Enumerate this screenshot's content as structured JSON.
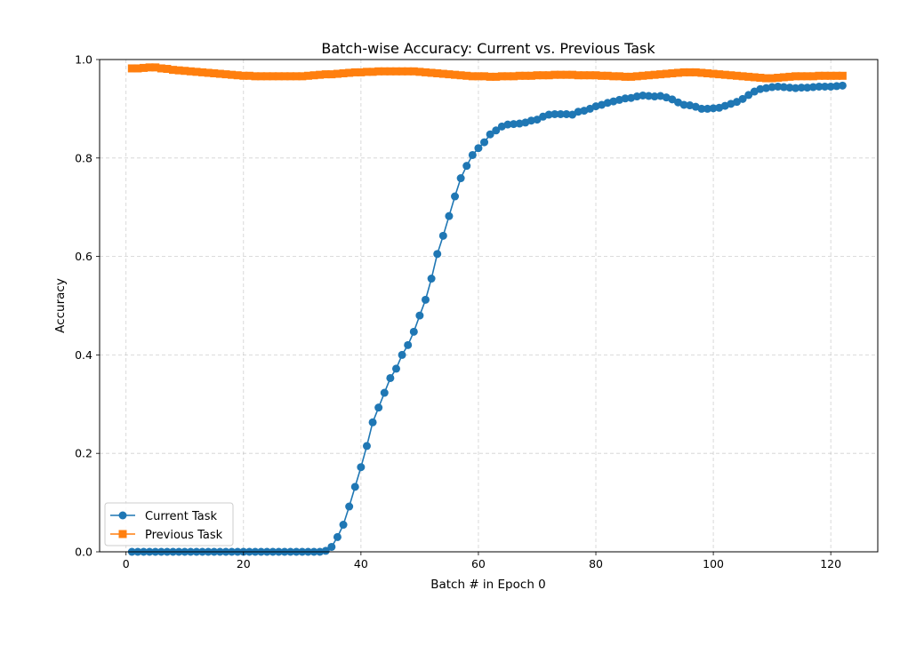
{
  "chart_data": {
    "type": "line",
    "title": "Batch-wise Accuracy: Current vs. Previous Task",
    "xlabel": "Batch # in Epoch 0",
    "ylabel": "Accuracy",
    "xlim": [
      -4.5,
      128
    ],
    "ylim": [
      0,
      1.0
    ],
    "xticks": [
      0,
      20,
      40,
      60,
      80,
      100,
      120
    ],
    "yticks": [
      0.0,
      0.2,
      0.4,
      0.6,
      0.8,
      1.0
    ],
    "xtick_labels": [
      "0",
      "20",
      "40",
      "60",
      "80",
      "100",
      "120"
    ],
    "ytick_labels": [
      "0.0",
      "0.2",
      "0.4",
      "0.6",
      "0.8",
      "1.0"
    ],
    "grid": true,
    "legend_position": "lower-left",
    "x": [
      1,
      2,
      3,
      4,
      5,
      6,
      7,
      8,
      9,
      10,
      11,
      12,
      13,
      14,
      15,
      16,
      17,
      18,
      19,
      20,
      21,
      22,
      23,
      24,
      25,
      26,
      27,
      28,
      29,
      30,
      31,
      32,
      33,
      34,
      35,
      36,
      37,
      38,
      39,
      40,
      41,
      42,
      43,
      44,
      45,
      46,
      47,
      48,
      49,
      50,
      51,
      52,
      53,
      54,
      55,
      56,
      57,
      58,
      59,
      60,
      61,
      62,
      63,
      64,
      65,
      66,
      67,
      68,
      69,
      70,
      71,
      72,
      73,
      74,
      75,
      76,
      77,
      78,
      79,
      80,
      81,
      82,
      83,
      84,
      85,
      86,
      87,
      88,
      89,
      90,
      91,
      92,
      93,
      94,
      95,
      96,
      97,
      98,
      99,
      100,
      101,
      102,
      103,
      104,
      105,
      106,
      107,
      108,
      109,
      110,
      111,
      112,
      113,
      114,
      115,
      116,
      117,
      118,
      119,
      120,
      121,
      122
    ],
    "series": [
      {
        "name": "Current Task",
        "color": "#1f77b4",
        "marker": "circle",
        "values": [
          0,
          0,
          0,
          0,
          0,
          0,
          0,
          0,
          0,
          0,
          0,
          0,
          0,
          0,
          0,
          0,
          0,
          0,
          0,
          0,
          0,
          0,
          0,
          0,
          0,
          0,
          0,
          0,
          0,
          0,
          0,
          0,
          0,
          0.002,
          0.01,
          0.03,
          0.055,
          0.092,
          0.132,
          0.172,
          0.215,
          0.263,
          0.293,
          0.323,
          0.353,
          0.372,
          0.4,
          0.42,
          0.447,
          0.48,
          0.512,
          0.555,
          0.605,
          0.642,
          0.682,
          0.722,
          0.759,
          0.784,
          0.806,
          0.82,
          0.832,
          0.848,
          0.856,
          0.864,
          0.868,
          0.869,
          0.87,
          0.872,
          0.876,
          0.878,
          0.884,
          0.888,
          0.889,
          0.889,
          0.889,
          0.888,
          0.894,
          0.896,
          0.9,
          0.905,
          0.908,
          0.912,
          0.915,
          0.918,
          0.921,
          0.922,
          0.925,
          0.927,
          0.926,
          0.925,
          0.926,
          0.923,
          0.919,
          0.913,
          0.908,
          0.907,
          0.904,
          0.9,
          0.9,
          0.901,
          0.902,
          0.906,
          0.91,
          0.914,
          0.92,
          0.928,
          0.935,
          0.94,
          0.942,
          0.944,
          0.945,
          0.944,
          0.943,
          0.942,
          0.943,
          0.943,
          0.944,
          0.945,
          0.945,
          0.945,
          0.946,
          0.947
        ]
      },
      {
        "name": "Previous Task",
        "color": "#ff7f0e",
        "marker": "square",
        "values": [
          0.982,
          0.982,
          0.983,
          0.984,
          0.984,
          0.982,
          0.981,
          0.979,
          0.978,
          0.977,
          0.976,
          0.975,
          0.974,
          0.973,
          0.972,
          0.971,
          0.97,
          0.969,
          0.968,
          0.967,
          0.967,
          0.966,
          0.966,
          0.966,
          0.966,
          0.966,
          0.966,
          0.966,
          0.966,
          0.966,
          0.967,
          0.968,
          0.969,
          0.97,
          0.97,
          0.971,
          0.972,
          0.973,
          0.974,
          0.974,
          0.975,
          0.975,
          0.976,
          0.976,
          0.976,
          0.976,
          0.976,
          0.976,
          0.976,
          0.975,
          0.974,
          0.973,
          0.972,
          0.971,
          0.97,
          0.969,
          0.968,
          0.967,
          0.966,
          0.966,
          0.966,
          0.965,
          0.965,
          0.966,
          0.966,
          0.966,
          0.967,
          0.967,
          0.967,
          0.968,
          0.968,
          0.968,
          0.969,
          0.969,
          0.969,
          0.969,
          0.968,
          0.968,
          0.968,
          0.968,
          0.967,
          0.967,
          0.966,
          0.966,
          0.965,
          0.965,
          0.966,
          0.967,
          0.968,
          0.969,
          0.97,
          0.971,
          0.972,
          0.973,
          0.974,
          0.974,
          0.974,
          0.973,
          0.972,
          0.971,
          0.97,
          0.969,
          0.968,
          0.967,
          0.966,
          0.965,
          0.964,
          0.963,
          0.962,
          0.962,
          0.963,
          0.964,
          0.965,
          0.966,
          0.966,
          0.966,
          0.966,
          0.967,
          0.967,
          0.967,
          0.967,
          0.967
        ]
      }
    ]
  }
}
